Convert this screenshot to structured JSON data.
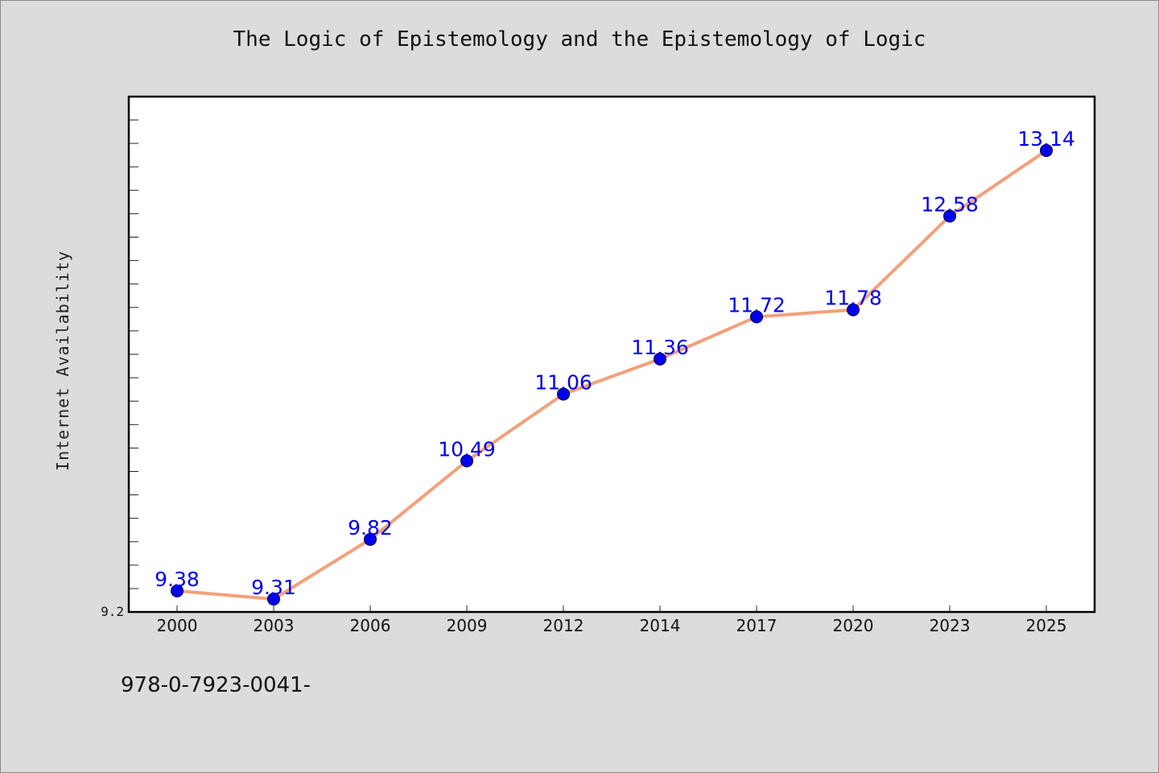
{
  "chart_data": {
    "type": "line",
    "title": "The Logic of Epistemology and the Epistemology of Logic",
    "ylabel": "Internet Availability",
    "xlabel": "",
    "categories": [
      "2000",
      "2003",
      "2006",
      "2009",
      "2012",
      "2014",
      "2017",
      "2020",
      "2023",
      "2025"
    ],
    "series": [
      {
        "values": [
          9.38,
          9.31,
          9.82,
          10.49,
          11.06,
          11.36,
          11.72,
          11.78,
          12.58,
          13.14
        ],
        "data_labels": [
          "9.38",
          "9.31",
          "9.82",
          "10.49",
          "11.06",
          "11.36",
          "11.72",
          "11.78",
          "12.58",
          "13.14"
        ]
      }
    ],
    "ylim": [
      9.2,
      13.6
    ],
    "ytick_labels": [
      "9.2"
    ],
    "grid": false,
    "line_color": "#f4a07a",
    "marker_color": "#0000ee",
    "label_color": "#0000ee"
  },
  "footer_text": "978-0-7923-0041-"
}
